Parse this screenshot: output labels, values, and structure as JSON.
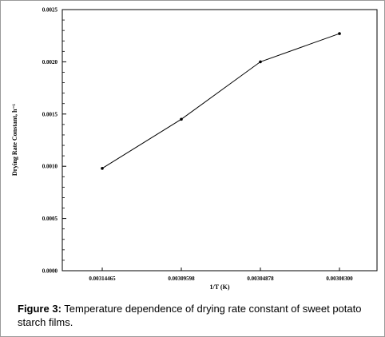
{
  "chart_data": {
    "type": "line",
    "xlabel": "1/T (K)",
    "ylabel": "Drying Rate Constant, h⁻¹",
    "categories": [
      "0.00314465",
      "0.00309598",
      "0.00304878",
      "0.00300300"
    ],
    "series": [
      {
        "values": [
          0.00098,
          0.00145,
          0.002,
          0.00227
        ]
      }
    ],
    "ylim": [
      0,
      0.0025
    ],
    "yticks": [
      "0.0000",
      "0.0005",
      "0.0010",
      "0.0015",
      "0.0020",
      "0.0025"
    ],
    "grid": false,
    "colors": {
      "line": "#000000",
      "axis": "#000000"
    }
  },
  "caption": {
    "label": "Figure 3:",
    "text": " Temperature dependence of drying rate constant of sweet potato starch films."
  }
}
